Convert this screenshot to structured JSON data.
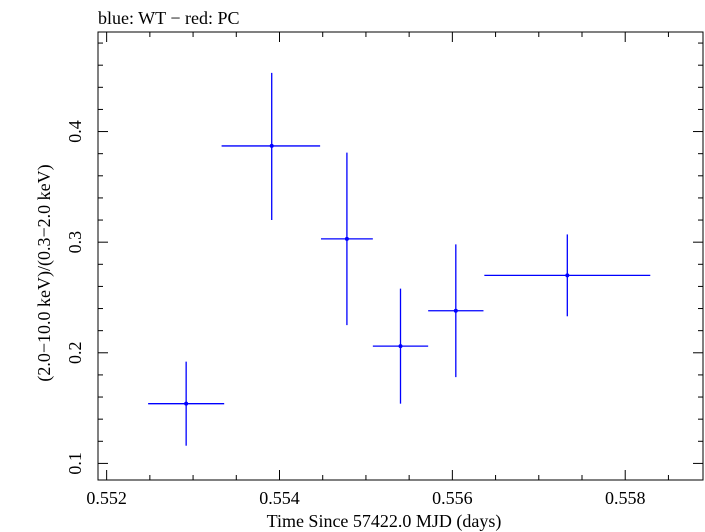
{
  "chart_data": {
    "type": "scatter",
    "title": "blue: WT − red: PC",
    "xlabel": "Time Since 57422.0 MJD (days)",
    "ylabel": "(2.0−10.0 keV)/(0.3−2.0 keV)",
    "xlim": [
      0.5519,
      0.5589
    ],
    "ylim": [
      0.085,
      0.49
    ],
    "x_ticks": [
      0.552,
      0.554,
      0.556,
      0.558
    ],
    "x_tick_labels": [
      "0.552",
      "0.554",
      "0.556",
      "0.558"
    ],
    "y_ticks": [
      0.1,
      0.2,
      0.3,
      0.4
    ],
    "y_tick_labels": [
      "0.1",
      "0.2",
      "0.3",
      "0.4"
    ],
    "grid": false,
    "series": [
      {
        "name": "WT",
        "color": "#0000ff",
        "points": [
          {
            "x": 0.55292,
            "y": 0.154,
            "xerr_lo": 0.00044,
            "xerr_hi": 0.00044,
            "yerr_lo": 0.038,
            "yerr_hi": 0.038
          },
          {
            "x": 0.55391,
            "y": 0.387,
            "xerr_lo": 0.00058,
            "xerr_hi": 0.00056,
            "yerr_lo": 0.067,
            "yerr_hi": 0.066
          },
          {
            "x": 0.55478,
            "y": 0.303,
            "xerr_lo": 0.0003,
            "xerr_hi": 0.0003,
            "yerr_lo": 0.078,
            "yerr_hi": 0.078
          },
          {
            "x": 0.5554,
            "y": 0.206,
            "xerr_lo": 0.00032,
            "xerr_hi": 0.00032,
            "yerr_lo": 0.052,
            "yerr_hi": 0.052
          },
          {
            "x": 0.55604,
            "y": 0.238,
            "xerr_lo": 0.00032,
            "xerr_hi": 0.00032,
            "yerr_lo": 0.06,
            "yerr_hi": 0.06
          },
          {
            "x": 0.55733,
            "y": 0.27,
            "xerr_lo": 0.00096,
            "xerr_hi": 0.00096,
            "yerr_lo": 0.037,
            "yerr_hi": 0.037
          }
        ]
      }
    ]
  }
}
